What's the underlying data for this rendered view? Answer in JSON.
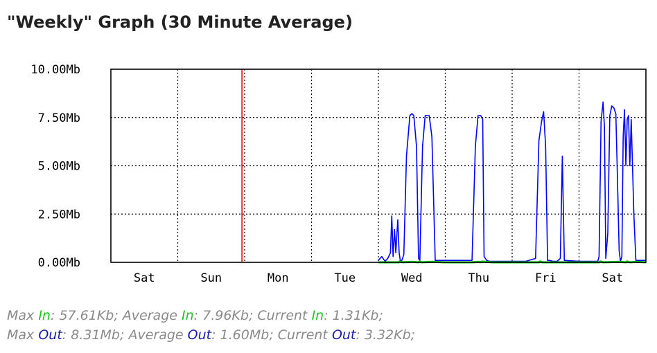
{
  "page_title": "\"Weekly\" Graph (30 Minute Average)",
  "colors": {
    "in_series": "#00cc00",
    "out_series": "#0000ff",
    "now_marker": "#ff0000",
    "grid": "#000000",
    "in_text": "#22c322",
    "out_text": "#1a1aa8",
    "stats_text": "#8a8a8a"
  },
  "chart_data": {
    "type": "line",
    "title": "",
    "xlabel": "",
    "ylabel": "",
    "ylim": [
      0,
      10
    ],
    "y_unit": "Mb",
    "y_ticks": [
      "0.00Mb",
      "2.50Mb",
      "5.00Mb",
      "7.50Mb",
      "10.00Mb"
    ],
    "x_tick_labels": [
      "Sat",
      "Sun",
      "Mon",
      "Tue",
      "Wed",
      "Thu",
      "Fri",
      "Sat"
    ],
    "xlim": [
      0,
      8
    ],
    "x_unit": "days",
    "grid": true,
    "legend": "none",
    "now_marker_x": 1.96,
    "series": [
      {
        "name": "Out",
        "x": [
          4.0,
          4.05,
          4.1,
          4.14,
          4.18,
          4.2,
          4.22,
          4.24,
          4.26,
          4.29,
          4.31,
          4.33,
          4.35,
          4.38,
          4.42,
          4.47,
          4.5,
          4.53,
          4.57,
          4.6,
          4.62,
          4.66,
          4.7,
          4.76,
          4.8,
          4.85,
          5.0,
          5.4,
          5.45,
          5.49,
          5.53,
          5.56,
          5.58,
          5.62,
          5.66,
          6.0,
          6.2,
          6.35,
          6.4,
          6.44,
          6.47,
          6.5,
          6.53,
          6.56,
          6.61,
          6.67,
          6.72,
          6.75,
          6.78,
          7.0,
          7.28,
          7.3,
          7.33,
          7.36,
          7.38,
          7.4,
          7.43,
          7.46,
          7.49,
          7.52,
          7.55,
          7.57,
          7.6,
          7.62,
          7.64,
          7.66,
          7.68,
          7.7,
          7.72,
          7.74,
          7.76,
          7.78,
          7.82,
          7.85,
          8.0
        ],
        "values": [
          0.1,
          0.3,
          0.05,
          0.2,
          0.5,
          2.4,
          0.3,
          1.7,
          0.5,
          2.2,
          0.5,
          0.05,
          0.1,
          0.4,
          5.5,
          7.6,
          7.7,
          7.6,
          6.0,
          0.2,
          0.1,
          6.0,
          7.6,
          7.6,
          6.5,
          0.1,
          0.1,
          0.1,
          6.0,
          7.6,
          7.6,
          7.4,
          0.3,
          0.1,
          0.05,
          0.05,
          0.05,
          0.2,
          6.3,
          7.3,
          7.8,
          6.0,
          0.1,
          0.1,
          0.05,
          0.05,
          0.2,
          5.5,
          0.1,
          0.05,
          0.05,
          0.3,
          7.3,
          8.3,
          7.0,
          0.2,
          1.5,
          7.6,
          8.1,
          8.0,
          7.7,
          5.0,
          0.6,
          0.05,
          0.3,
          6.5,
          7.9,
          5.0,
          7.4,
          7.6,
          5.0,
          7.4,
          2.5,
          0.1,
          0.1
        ],
        "color": "#0000ff"
      },
      {
        "name": "In",
        "x": [
          4.0,
          4.3,
          4.32,
          4.36,
          4.5,
          4.6,
          4.62,
          4.65,
          4.8,
          5.0,
          5.4,
          5.5,
          5.52,
          5.55,
          5.7,
          6.4,
          6.42,
          6.45,
          6.6,
          7.3,
          7.32,
          7.36,
          7.6,
          7.7,
          7.72,
          7.76,
          7.85,
          8.0
        ],
        "values": [
          0.0,
          0.0,
          0.05,
          0.0,
          0.03,
          0.0,
          0.05,
          0.0,
          0.03,
          0.0,
          0.0,
          0.03,
          0.0,
          0.04,
          0.0,
          0.0,
          0.05,
          0.0,
          0.0,
          0.0,
          0.05,
          0.0,
          0.03,
          0.0,
          0.05,
          0.0,
          0.03,
          0.0
        ],
        "color": "#00cc00"
      }
    ]
  },
  "stats": {
    "line1": {
      "max_label": "Max",
      "average_label": "Average",
      "current_label": "Current",
      "word": "In",
      "max": "57.61Kb",
      "average": "7.96Kb",
      "current": "1.31Kb"
    },
    "line2": {
      "max_label": "Max",
      "average_label": "Average",
      "current_label": "Current",
      "word": "Out",
      "max": "8.31Mb",
      "average": "1.60Mb",
      "current": "3.32Kb"
    },
    "sep": ": ",
    "end": ";"
  }
}
